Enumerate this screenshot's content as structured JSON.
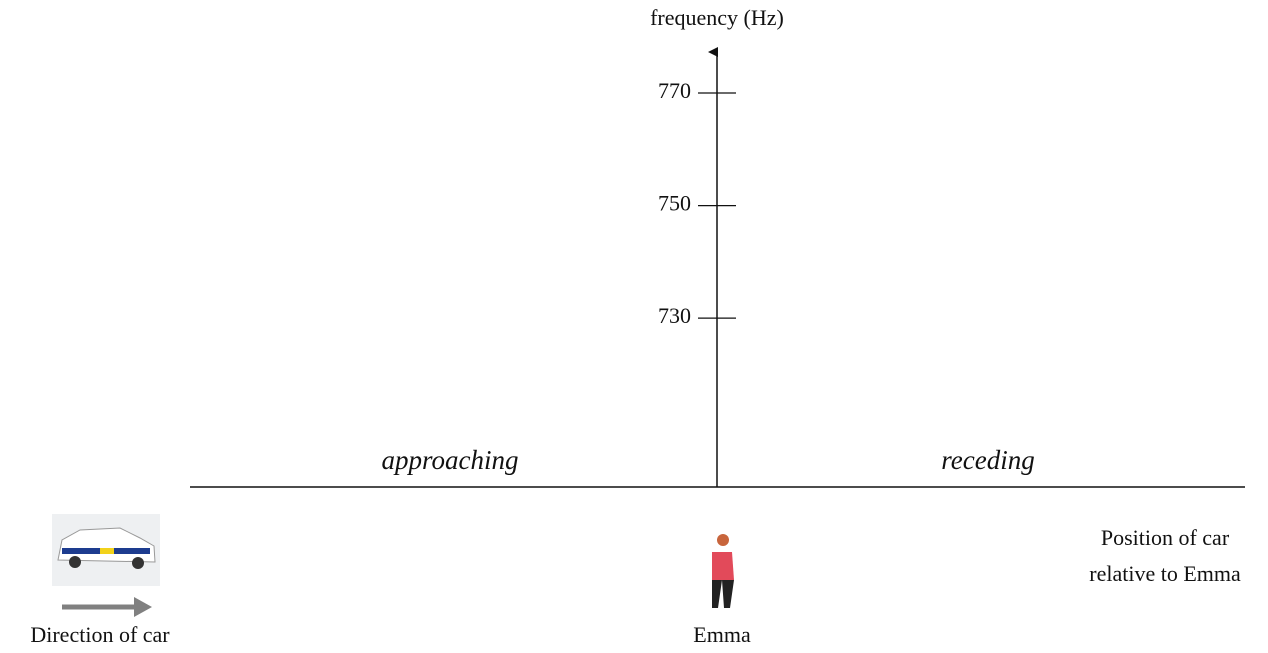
{
  "y_axis": {
    "label": "frequency (Hz)",
    "ylim": [
      700,
      778
    ],
    "ticks": [
      730,
      750,
      770
    ]
  },
  "regions": {
    "left": "approaching",
    "right": "receding"
  },
  "x_axis": {
    "label_lines": [
      "Position of car",
      "relative to Emma"
    ]
  },
  "car": {
    "label": "Direction of car"
  },
  "observer": {
    "label": "Emma"
  }
}
